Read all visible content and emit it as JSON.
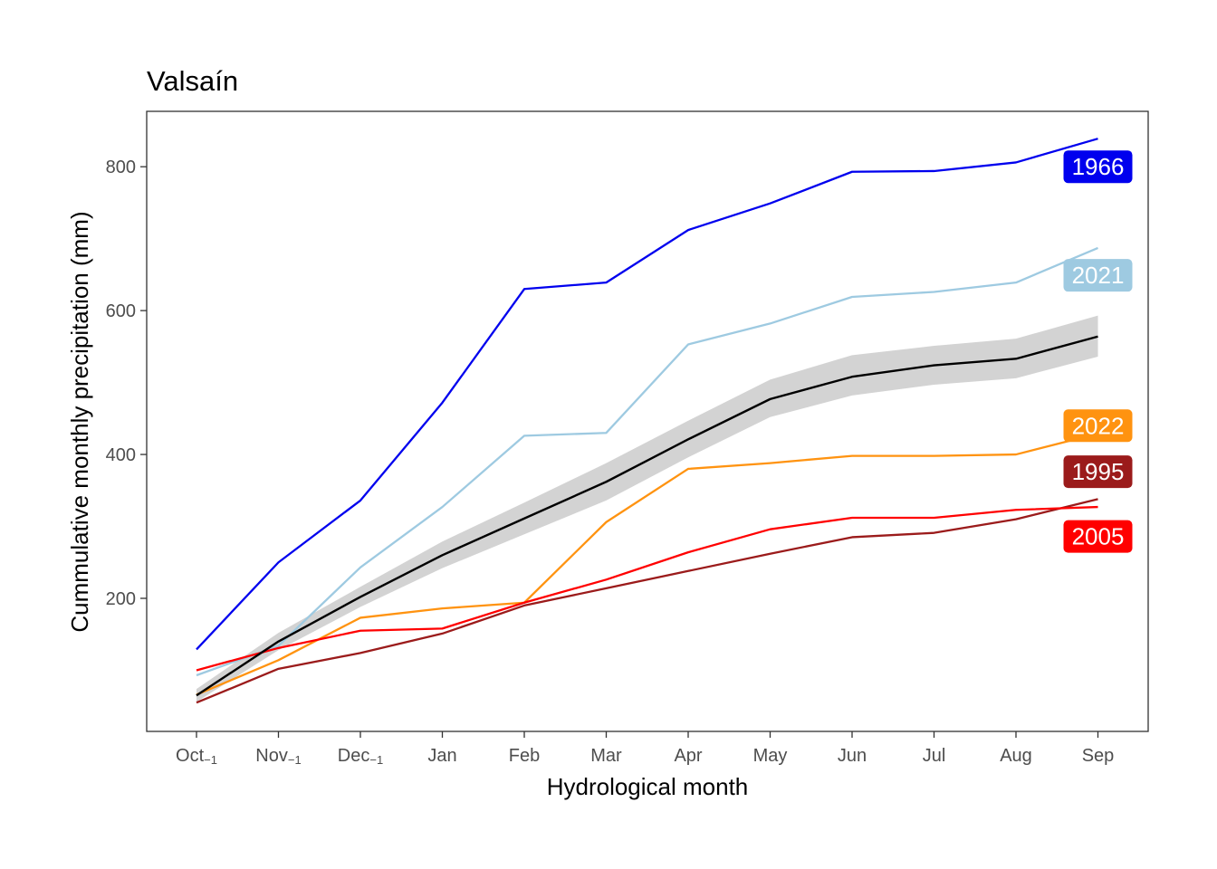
{
  "chart_data": {
    "type": "line",
    "title": "Valsaín",
    "xlabel": "Hydrological month",
    "ylabel": "Cummulative monthly precipitation (mm)",
    "categories": [
      {
        "base": "Oct",
        "sub": "-1"
      },
      {
        "base": "Nov",
        "sub": "-1"
      },
      {
        "base": "Dec",
        "sub": "-1"
      },
      {
        "base": "Jan",
        "sub": ""
      },
      {
        "base": "Feb",
        "sub": ""
      },
      {
        "base": "Mar",
        "sub": ""
      },
      {
        "base": "Apr",
        "sub": ""
      },
      {
        "base": "May",
        "sub": ""
      },
      {
        "base": "Jun",
        "sub": ""
      },
      {
        "base": "Jul",
        "sub": ""
      },
      {
        "base": "Aug",
        "sub": ""
      },
      {
        "base": "Sep",
        "sub": ""
      }
    ],
    "yticks": [
      200,
      400,
      600,
      800
    ],
    "ylim": [
      15,
      877
    ],
    "grid": false,
    "mean": {
      "values": [
        65,
        140,
        202,
        260,
        311,
        362,
        421,
        477,
        508,
        524,
        533,
        564
      ],
      "lower": [
        56,
        128,
        188,
        242,
        289,
        336,
        396,
        452,
        482,
        497,
        506,
        536
      ],
      "upper": [
        74,
        152,
        216,
        279,
        333,
        388,
        447,
        504,
        538,
        551,
        561,
        593
      ],
      "color": "#000000",
      "band_color": "#d3d3d3"
    },
    "series": [
      {
        "name": "1966",
        "color": "#0000ee",
        "values": [
          129,
          250,
          336,
          472,
          630,
          639,
          712,
          749,
          793,
          794,
          806,
          839
        ],
        "label_value": 800
      },
      {
        "name": "2021",
        "color": "#9ecae1",
        "values": [
          93,
          134,
          243,
          327,
          426,
          430,
          553,
          582,
          619,
          626,
          639,
          687
        ],
        "label_value": 649
      },
      {
        "name": "2022",
        "color": "#ff9310",
        "values": [
          66,
          114,
          173,
          186,
          194,
          306,
          380,
          388,
          398,
          398,
          400,
          429
        ],
        "label_value": 440
      },
      {
        "name": "1995",
        "color": "#9b1b1b",
        "values": [
          55,
          102,
          124,
          151,
          190,
          214,
          238,
          262,
          285,
          291,
          310,
          338
        ],
        "label_value": 376
      },
      {
        "name": "2005",
        "color": "#ff0000",
        "values": [
          100,
          131,
          155,
          158,
          194,
          226,
          264,
          296,
          312,
          312,
          323,
          327
        ],
        "label_value": 286
      }
    ]
  }
}
